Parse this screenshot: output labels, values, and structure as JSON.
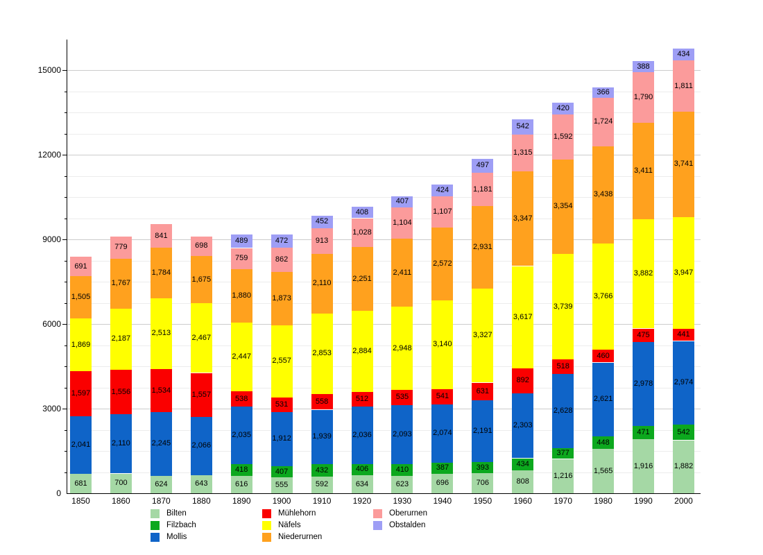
{
  "chart_data": {
    "type": "bar",
    "stacked": true,
    "title": "",
    "xlabel": "",
    "ylabel": "",
    "categories": [
      "1850",
      "1860",
      "1870",
      "1880",
      "1890",
      "1900",
      "1910",
      "1920",
      "1930",
      "1940",
      "1950",
      "1960",
      "1970",
      "1980",
      "1990",
      "2000"
    ],
    "series": [
      {
        "name": "Bilten",
        "color": "#A5D8A5",
        "values": [
          681,
          700,
          624,
          643,
          616,
          555,
          592,
          634,
          623,
          696,
          706,
          808,
          1216,
          1565,
          1916,
          1882
        ]
      },
      {
        "name": "Filzbach",
        "color": "#0CA81E",
        "values": [
          null,
          null,
          null,
          null,
          418,
          407,
          432,
          406,
          410,
          387,
          393,
          434,
          377,
          448,
          471,
          542
        ]
      },
      {
        "name": "Mollis",
        "color": "#0F64C8",
        "values": [
          2041,
          2110,
          2245,
          2066,
          2035,
          1912,
          1939,
          2036,
          2093,
          2074,
          2191,
          2303,
          2628,
          2621,
          2978,
          2974
        ]
      },
      {
        "name": "Mühlehorn",
        "color": "#FA0000",
        "values": [
          1597,
          1556,
          1534,
          1557,
          538,
          531,
          558,
          512,
          535,
          541,
          631,
          892,
          518,
          460,
          475,
          441
        ]
      },
      {
        "name": "Näfels",
        "color": "#FFFF00",
        "values": [
          1869,
          2187,
          2513,
          2467,
          2447,
          2557,
          2853,
          2884,
          2948,
          3140,
          3327,
          3617,
          3739,
          3766,
          3882,
          3947
        ]
      },
      {
        "name": "Niederurnen",
        "color": "#FFA11E",
        "values": [
          1505,
          1767,
          1784,
          1675,
          1880,
          1873,
          2110,
          2251,
          2411,
          2572,
          2931,
          3347,
          3354,
          3438,
          3411,
          3741
        ]
      },
      {
        "name": "Oberurnen",
        "color": "#FB9B9B",
        "values": [
          691,
          779,
          841,
          698,
          759,
          862,
          913,
          1028,
          1104,
          1107,
          1181,
          1315,
          1592,
          1724,
          1790,
          1811
        ]
      },
      {
        "name": "Obstalden",
        "color": "#9E9EF5",
        "values": [
          null,
          null,
          null,
          null,
          489,
          472,
          452,
          408,
          407,
          424,
          497,
          542,
          420,
          366,
          388,
          434
        ]
      }
    ],
    "y_axis": {
      "min": 0,
      "max": 15000,
      "major_step": 3000,
      "minor_step": 750,
      "tick_labels": [
        "0",
        "3000",
        "6000",
        "9000",
        "12000",
        "15000"
      ]
    },
    "x_axis": {
      "tick_labels": [
        "1850",
        "1860",
        "1870",
        "1880",
        "1890",
        "1900",
        "1910",
        "1920",
        "1930",
        "1940",
        "1950",
        "1960",
        "1970",
        "1980",
        "1990",
        "2000"
      ]
    },
    "grid": true,
    "value_labels": "inside-centered, thousands separated with comma",
    "legend": {
      "position": "bottom",
      "columns": [
        [
          "Bilten",
          "Filzbach",
          "Mollis"
        ],
        [
          "Mühlehorn",
          "Näfels",
          "Niederurnen"
        ],
        [
          "Oberurnen",
          "Obstalden"
        ]
      ]
    }
  }
}
